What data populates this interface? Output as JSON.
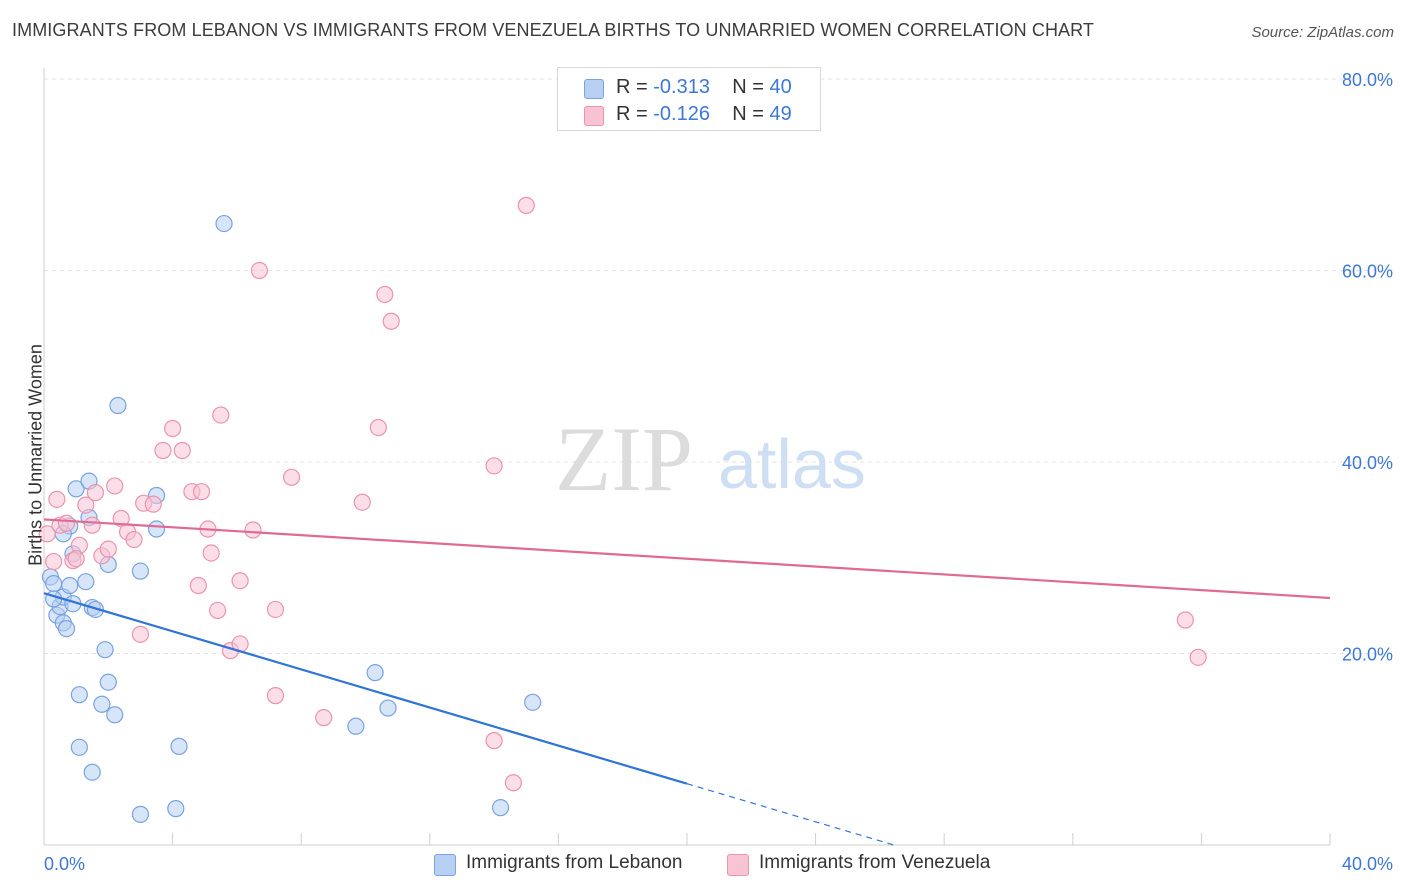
{
  "title": "IMMIGRANTS FROM LEBANON VS IMMIGRANTS FROM VENEZUELA BIRTHS TO UNMARRIED WOMEN CORRELATION CHART",
  "source": "Source: ZipAtlas.com",
  "watermark": {
    "zip": "ZIP",
    "atlas": "atlas"
  },
  "legend": {
    "r_label": "R =",
    "n_label": "N =",
    "rows": [
      {
        "r": "-0.313",
        "n": "40"
      },
      {
        "r": "-0.126",
        "n": "49"
      }
    ]
  },
  "bottom_legend": [
    "Immigrants from Lebanon",
    "Immigrants from Venezuela"
  ],
  "colors": {
    "blue_fill": "#b7cff2",
    "blue_stroke": "#7aa3e0",
    "blue_line": "#2f74d6",
    "pink_fill": "#f8c3d3",
    "pink_stroke": "#ec93ae",
    "pink_line": "#e06a95",
    "tick_label": "#3b78d8",
    "grid": "#e3e3e3"
  },
  "chart_data": {
    "type": "scatter",
    "title": "IMMIGRANTS FROM LEBANON VS IMMIGRANTS FROM VENEZUELA BIRTHS TO UNMARRIED WOMEN CORRELATION CHART",
    "xlabel": "",
    "ylabel": "Births to Unmarried Women",
    "xlim": [
      0,
      40
    ],
    "ylim": [
      0,
      80
    ],
    "x_tick_labels": [
      "0.0%",
      "40.0%"
    ],
    "y_ticks": [
      20,
      40,
      60,
      80
    ],
    "y_tick_labels": [
      "20.0%",
      "40.0%",
      "60.0%",
      "80.0%"
    ],
    "grid": true,
    "legend_position": "top-center",
    "series": [
      {
        "name": "Immigrants from Lebanon",
        "r": -0.313,
        "n": 40,
        "points": [
          [
            0.2,
            28.0
          ],
          [
            0.3,
            27.3
          ],
          [
            0.4,
            24.0
          ],
          [
            0.5,
            24.9
          ],
          [
            0.6,
            23.2
          ],
          [
            0.6,
            25.9
          ],
          [
            0.7,
            22.6
          ],
          [
            0.8,
            27.1
          ],
          [
            0.8,
            33.3
          ],
          [
            0.9,
            30.4
          ],
          [
            0.9,
            25.2
          ],
          [
            1.0,
            37.2
          ],
          [
            1.3,
            27.5
          ],
          [
            1.4,
            38.0
          ],
          [
            1.4,
            34.2
          ],
          [
            1.5,
            24.8
          ],
          [
            1.6,
            24.6
          ],
          [
            1.9,
            20.4
          ],
          [
            2.0,
            29.3
          ],
          [
            2.0,
            17.0
          ],
          [
            2.2,
            13.6
          ],
          [
            2.3,
            45.9
          ],
          [
            3.0,
            28.6
          ],
          [
            3.5,
            36.5
          ],
          [
            3.5,
            33.0
          ],
          [
            5.6,
            64.9
          ],
          [
            1.1,
            15.7
          ],
          [
            1.8,
            14.7
          ],
          [
            1.1,
            10.2
          ],
          [
            1.5,
            7.6
          ],
          [
            3.0,
            3.2
          ],
          [
            4.2,
            10.3
          ],
          [
            4.1,
            3.8
          ],
          [
            10.3,
            18.0
          ],
          [
            9.7,
            12.4
          ],
          [
            10.7,
            14.3
          ],
          [
            15.2,
            14.9
          ],
          [
            14.2,
            3.9
          ],
          [
            0.3,
            25.7
          ],
          [
            0.6,
            32.5
          ]
        ]
      },
      {
        "name": "Immigrants from Venezuela",
        "r": -0.126,
        "n": 49,
        "points": [
          [
            0.1,
            32.5
          ],
          [
            0.3,
            29.6
          ],
          [
            0.5,
            33.4
          ],
          [
            0.7,
            33.6
          ],
          [
            0.9,
            29.7
          ],
          [
            1.1,
            31.3
          ],
          [
            1.3,
            35.5
          ],
          [
            1.5,
            33.4
          ],
          [
            1.6,
            36.8
          ],
          [
            1.8,
            30.2
          ],
          [
            2.0,
            30.9
          ],
          [
            2.2,
            37.5
          ],
          [
            2.4,
            34.1
          ],
          [
            2.6,
            32.7
          ],
          [
            2.8,
            31.9
          ],
          [
            3.1,
            35.7
          ],
          [
            3.4,
            35.6
          ],
          [
            3.7,
            41.2
          ],
          [
            4.0,
            43.5
          ],
          [
            4.3,
            41.2
          ],
          [
            4.6,
            36.9
          ],
          [
            4.8,
            27.1
          ],
          [
            4.9,
            36.9
          ],
          [
            5.1,
            33.0
          ],
          [
            5.2,
            30.5
          ],
          [
            5.4,
            24.5
          ],
          [
            5.5,
            44.9
          ],
          [
            5.8,
            20.3
          ],
          [
            6.1,
            21.0
          ],
          [
            6.1,
            27.6
          ],
          [
            6.5,
            32.9
          ],
          [
            6.7,
            60.0
          ],
          [
            7.2,
            24.6
          ],
          [
            7.2,
            15.6
          ],
          [
            7.7,
            38.4
          ],
          [
            3.0,
            22.0
          ],
          [
            8.7,
            13.3
          ],
          [
            9.9,
            35.8
          ],
          [
            10.4,
            43.6
          ],
          [
            10.6,
            57.5
          ],
          [
            10.8,
            54.7
          ],
          [
            14.0,
            39.6
          ],
          [
            14.0,
            10.9
          ],
          [
            14.6,
            6.5
          ],
          [
            15.0,
            66.8
          ],
          [
            35.5,
            23.5
          ],
          [
            35.9,
            19.6
          ],
          [
            1.0,
            29.9
          ],
          [
            0.4,
            36.1
          ]
        ]
      }
    ],
    "trendlines": [
      {
        "series": "Immigrants from Lebanon",
        "x": [
          0,
          20
        ],
        "y": [
          26.3,
          6.4
        ],
        "dashed_extension_to_x": 26.5
      },
      {
        "series": "Immigrants from Venezuela",
        "x": [
          0,
          40
        ],
        "y": [
          34.0,
          25.8
        ]
      }
    ]
  }
}
